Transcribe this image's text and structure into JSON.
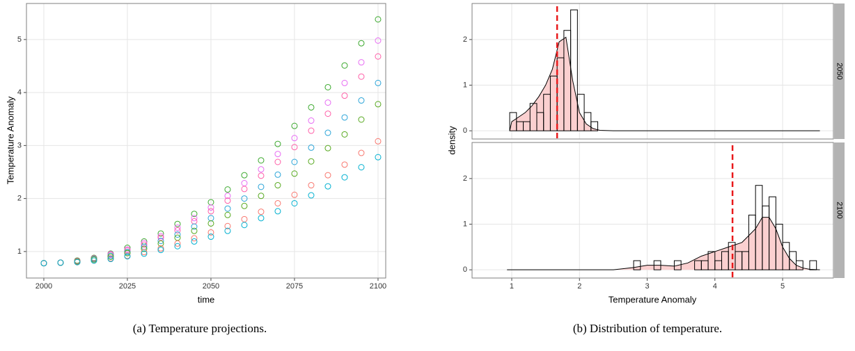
{
  "chart_data": [
    {
      "type": "scatter",
      "xlabel": "time",
      "ylabel": "Temperature Anomaly",
      "x": [
        2000,
        2005,
        2010,
        2015,
        2020,
        2025,
        2030,
        2035,
        2040,
        2045,
        2050,
        2055,
        2060,
        2065,
        2070,
        2075,
        2080,
        2085,
        2090,
        2095,
        2100
      ],
      "series": [
        {
          "color": "#3aa82c",
          "values": [
            0.78,
            0.79,
            0.83,
            0.88,
            0.96,
            1.07,
            1.19,
            1.34,
            1.52,
            1.71,
            1.93,
            2.17,
            2.44,
            2.72,
            3.03,
            3.37,
            3.72,
            4.1,
            4.51,
            4.93,
            5.38
          ]
        },
        {
          "color": "#e76bf3",
          "values": [
            0.78,
            0.79,
            0.82,
            0.87,
            0.95,
            1.04,
            1.16,
            1.29,
            1.45,
            1.63,
            1.83,
            2.05,
            2.29,
            2.55,
            2.84,
            3.14,
            3.47,
            3.81,
            4.18,
            4.57,
            4.98
          ]
        },
        {
          "color": "#ff5fa8",
          "values": [
            0.78,
            0.79,
            0.82,
            0.87,
            0.94,
            1.02,
            1.13,
            1.26,
            1.4,
            1.57,
            1.76,
            1.96,
            2.18,
            2.43,
            2.69,
            2.97,
            3.28,
            3.6,
            3.94,
            4.3,
            4.68
          ]
        },
        {
          "color": "#2aa4d8",
          "values": [
            0.78,
            0.79,
            0.81,
            0.86,
            0.92,
            0.99,
            1.09,
            1.2,
            1.32,
            1.47,
            1.63,
            1.81,
            2.0,
            2.22,
            2.45,
            2.69,
            2.96,
            3.24,
            3.53,
            3.85,
            4.18
          ]
        },
        {
          "color": "#56a81e",
          "values": [
            0.78,
            0.79,
            0.81,
            0.85,
            0.9,
            0.97,
            1.05,
            1.15,
            1.26,
            1.39,
            1.53,
            1.69,
            1.86,
            2.05,
            2.25,
            2.47,
            2.7,
            2.95,
            3.21,
            3.49,
            3.78
          ]
        },
        {
          "color": "#f8766d",
          "values": [
            0.78,
            0.79,
            0.8,
            0.83,
            0.87,
            0.92,
            0.99,
            1.06,
            1.15,
            1.25,
            1.36,
            1.48,
            1.61,
            1.75,
            1.91,
            2.07,
            2.25,
            2.44,
            2.64,
            2.86,
            3.08
          ]
        },
        {
          "color": "#00b0d0",
          "values": [
            0.78,
            0.79,
            0.8,
            0.83,
            0.86,
            0.91,
            0.96,
            1.03,
            1.1,
            1.19,
            1.28,
            1.39,
            1.5,
            1.63,
            1.76,
            1.91,
            2.06,
            2.23,
            2.4,
            2.59,
            2.78
          ]
        }
      ],
      "xlim": [
        1994.8,
        2102.3
      ],
      "ylim": [
        0.5,
        5.68
      ],
      "xticks": [
        2000,
        2025,
        2050,
        2075,
        2100
      ],
      "yticks": [
        1,
        2,
        3,
        4,
        5
      ],
      "grid": true
    },
    {
      "type": "histogram",
      "xlabel": "Temperature Anomaly",
      "ylabel": "density",
      "xlim": [
        0.414,
        5.75
      ],
      "ylim": [
        -0.18,
        2.79
      ],
      "xticks": [
        1,
        2,
        3,
        4,
        5
      ],
      "yticks": [
        0,
        1,
        2
      ],
      "grid": true,
      "fill": "#fbd0d0",
      "mean_color": "#e8191b",
      "facets": [
        {
          "label": "2050",
          "bins": [
            0.97,
            1.07,
            1.17,
            1.27,
            1.37,
            1.47,
            1.57,
            1.67,
            1.77,
            1.87,
            1.97,
            2.07,
            2.17,
            2.27
          ],
          "values": [
            0.4,
            0.2,
            0.2,
            0.6,
            0.4,
            0.8,
            1.2,
            1.6,
            2.2,
            2.65,
            0.8,
            0.4,
            0.2
          ],
          "density": {
            "x": [
              0.97,
              1.0,
              1.1,
              1.2,
              1.3,
              1.4,
              1.5,
              1.6,
              1.7,
              1.8,
              1.9,
              2.0,
              2.1,
              2.2,
              2.3,
              2.5,
              5.55
            ],
            "y": [
              0,
              0.2,
              0.3,
              0.4,
              0.55,
              0.75,
              1.0,
              1.35,
              1.95,
              2.05,
              1.1,
              0.4,
              0.15,
              0.05,
              0.01,
              0,
              0
            ]
          },
          "mean": 1.67
        },
        {
          "label": "2100",
          "bins": [
            2.8,
            2.9,
            3.0,
            3.1,
            3.2,
            3.3,
            3.4,
            3.5,
            3.6,
            3.7,
            3.8,
            3.9,
            4.0,
            4.1,
            4.2,
            4.3,
            4.4,
            4.5,
            4.6,
            4.7,
            4.8,
            4.9,
            5.0,
            5.1,
            5.2,
            5.3,
            5.4,
            5.5
          ],
          "values": [
            0.2,
            0,
            0,
            0.2,
            0,
            0,
            0.2,
            0,
            0,
            0.2,
            0.2,
            0.4,
            0.2,
            0.4,
            0.6,
            0.4,
            0.4,
            1.2,
            1.85,
            1.4,
            1.6,
            1.0,
            0.6,
            0.4,
            0.2,
            0,
            0.2
          ],
          "density": {
            "x": [
              0.93,
              2.5,
              2.8,
              3.0,
              3.2,
              3.4,
              3.6,
              3.8,
              4.0,
              4.2,
              4.4,
              4.6,
              4.7,
              4.8,
              4.9,
              5.0,
              5.1,
              5.2,
              5.3,
              5.4,
              5.55
            ],
            "y": [
              0,
              0,
              0.05,
              0.1,
              0.1,
              0.08,
              0.15,
              0.3,
              0.4,
              0.5,
              0.6,
              0.9,
              1.15,
              1.15,
              0.9,
              0.5,
              0.25,
              0.1,
              0.04,
              0.01,
              0
            ]
          },
          "mean": 4.26
        }
      ]
    }
  ],
  "captions": [
    "(a) Temperature projections.",
    "(b) Distribution of temperature."
  ]
}
